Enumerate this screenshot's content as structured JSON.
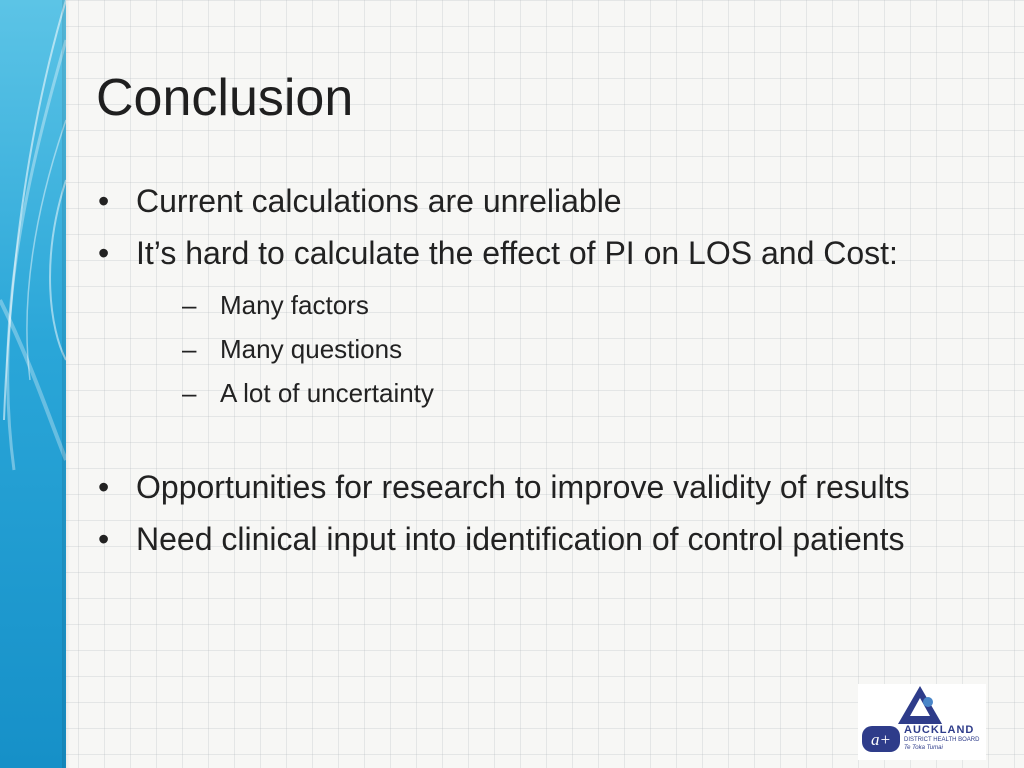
{
  "slide": {
    "title": "Conclusion",
    "bullets": [
      "Current calculations are unreliable",
      "It’s hard to calculate the effect of PI on LOS and Cost:",
      "Opportunities for research to improve validity of results",
      "Need clinical input into identification of control patients"
    ],
    "sub_bullets": [
      "Many factors",
      "Many questions",
      "A lot of uncertainty"
    ]
  },
  "logo": {
    "badge": "a+",
    "line1": "AUCKLAND",
    "line2": "DISTRICT HEALTH BOARD",
    "line3": "Te Toka Tumai"
  },
  "colors": {
    "accent_band": "#2aa6d8",
    "logo_blue": "#2e3c8a"
  }
}
